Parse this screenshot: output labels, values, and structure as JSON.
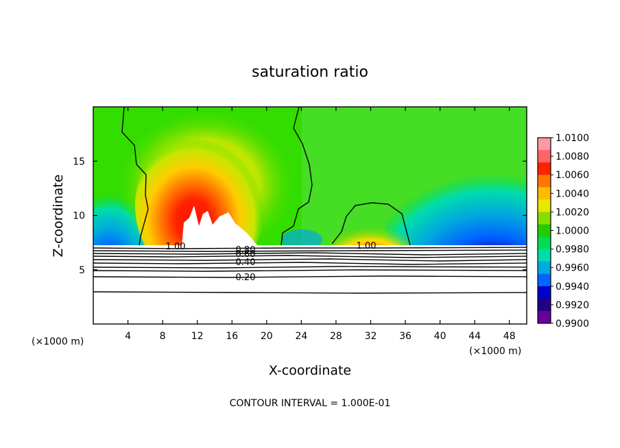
{
  "chart_data": {
    "type": "heatmap",
    "title": "saturation ratio",
    "xlabel": "X-coordinate",
    "ylabel": "Z-coordinate",
    "x_unit_label": "(×1000 m)",
    "y_unit_label": "(×1000 m)",
    "xlim": [
      0,
      50
    ],
    "ylim": [
      0,
      20
    ],
    "x_ticks": [
      "4",
      "8",
      "12",
      "16",
      "20",
      "24",
      "28",
      "32",
      "36",
      "40",
      "44",
      "48"
    ],
    "y_ticks": [
      "5",
      "10",
      "15"
    ],
    "footer": "CONTOUR INTERVAL = 1.000E-01",
    "colorbar": {
      "labels": [
        "1.0100",
        "1.0080",
        "1.0060",
        "1.0040",
        "1.0020",
        "1.0000",
        "0.9980",
        "0.9960",
        "0.9940",
        "0.9920",
        "0.9900"
      ],
      "colors": [
        "#ff99aa",
        "#ff6666",
        "#ff2200",
        "#ff7700",
        "#ffbb00",
        "#e8e800",
        "#88dd00",
        "#22cc00",
        "#00dd55",
        "#00ddaa",
        "#00aadd",
        "#0066ff",
        "#0000cc",
        "#220088",
        "#660099"
      ]
    },
    "contour_labels": [
      "1.00",
      "1.00",
      "0.80",
      "0.60",
      "0.40",
      "0.20"
    ],
    "colors": {
      "background_field": "#22dd00",
      "ice_region": "#ffffff",
      "contour": "#000000"
    }
  }
}
